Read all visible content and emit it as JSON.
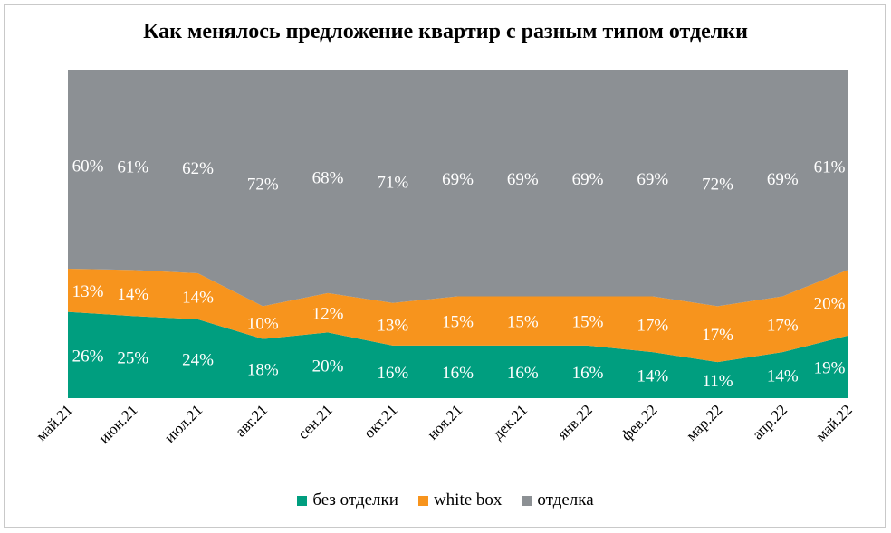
{
  "chart_data": {
    "type": "area",
    "stacked": true,
    "percent": true,
    "title": "Как менялось предложение квартир с разным типом отделки",
    "categories": [
      "май.21",
      "июн.21",
      "июл.21",
      "авг.21",
      "сен.21",
      "окт.21",
      "ноя.21",
      "дек.21",
      "янв.22",
      "фев.22",
      "мар.22",
      "апр.22",
      "май.22"
    ],
    "series": [
      {
        "name": "без отделки",
        "color": "#009e7f",
        "values": [
          26,
          25,
          24,
          18,
          20,
          16,
          16,
          16,
          16,
          14,
          11,
          14,
          19
        ]
      },
      {
        "name": "white box",
        "color": "#f7941d",
        "values": [
          13,
          14,
          14,
          10,
          12,
          13,
          15,
          15,
          15,
          17,
          17,
          17,
          20
        ]
      },
      {
        "name": "отделка",
        "color": "#8c9094",
        "values": [
          60,
          61,
          62,
          72,
          68,
          71,
          69,
          69,
          69,
          69,
          72,
          69,
          61
        ]
      }
    ],
    "ylim": [
      0,
      100
    ],
    "grid": false,
    "legend": "bottom"
  }
}
